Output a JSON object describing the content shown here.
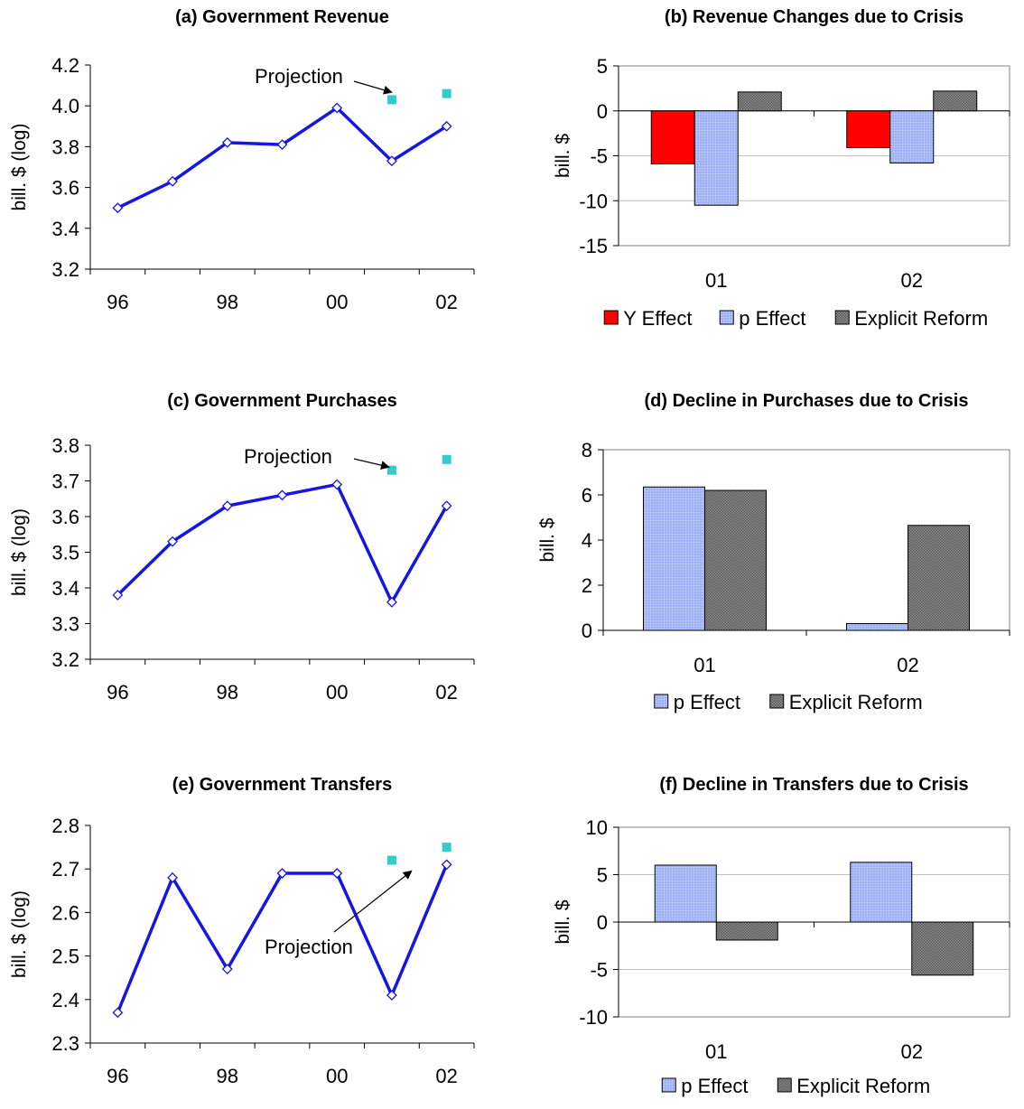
{
  "colors": {
    "line": "#1515e6",
    "projection": "#33cccc",
    "y_effect": "#ff0000",
    "p_effect": "#a6b8f5",
    "explicit_reform": "#8c8c8c",
    "axis": "#000000",
    "grid": "#c0c0c0"
  },
  "chart_data": [
    {
      "panel": "a",
      "type": "line",
      "title": "(a) Government Revenue",
      "ylabel": "bill. $ (log)",
      "xlabel": "",
      "x_ticks": [
        "96",
        "98",
        "00",
        "02"
      ],
      "x": [
        "96",
        "97",
        "98",
        "99",
        "00",
        "01",
        "02"
      ],
      "ylim": [
        3.2,
        4.2
      ],
      "y_ticks": [
        "3.2",
        "3.4",
        "3.6",
        "3.8",
        "4.0",
        "4.2"
      ],
      "grid": false,
      "series": [
        {
          "values": [
            3.5,
            3.63,
            3.82,
            3.81,
            3.99,
            3.73,
            3.9
          ]
        }
      ],
      "projection": {
        "x": [
          "01",
          "02"
        ],
        "values": [
          4.03,
          4.06
        ]
      },
      "annotation": "Projection"
    },
    {
      "panel": "b",
      "type": "bar",
      "title": "(b) Revenue Changes due to Crisis",
      "ylabel": "bill. $",
      "xlabel": "",
      "categories": [
        "01",
        "02"
      ],
      "ylim": [
        -15,
        5
      ],
      "y_ticks": [
        "5",
        "0",
        "-5",
        "-10",
        "-15"
      ],
      "grid": true,
      "legend_position": "bottom",
      "series": [
        {
          "name": "Y Effect",
          "values": [
            -5.9,
            -4.1
          ]
        },
        {
          "name": "p Effect",
          "values": [
            -10.5,
            -5.8
          ]
        },
        {
          "name": "Explicit Reform",
          "values": [
            2.1,
            2.2
          ]
        }
      ]
    },
    {
      "panel": "c",
      "type": "line",
      "title": "(c) Government Purchases",
      "ylabel": "bill. $ (log)",
      "xlabel": "",
      "x_ticks": [
        "96",
        "98",
        "00",
        "02"
      ],
      "x": [
        "96",
        "97",
        "98",
        "99",
        "00",
        "01",
        "02"
      ],
      "ylim": [
        3.2,
        3.8
      ],
      "y_ticks": [
        "3.2",
        "3.3",
        "3.4",
        "3.5",
        "3.6",
        "3.7",
        "3.8"
      ],
      "grid": false,
      "series": [
        {
          "values": [
            3.38,
            3.53,
            3.63,
            3.66,
            3.69,
            3.36,
            3.63
          ]
        }
      ],
      "projection": {
        "x": [
          "01",
          "02"
        ],
        "values": [
          3.73,
          3.76
        ]
      },
      "annotation": "Projection"
    },
    {
      "panel": "d",
      "type": "bar",
      "title": "(d) Decline in Purchases due to Crisis",
      "ylabel": "bill. $",
      "xlabel": "",
      "categories": [
        "01",
        "02"
      ],
      "ylim": [
        0,
        8
      ],
      "y_ticks": [
        "8",
        "6",
        "4",
        "2",
        "0"
      ],
      "grid": false,
      "legend_position": "bottom",
      "series": [
        {
          "name": "p Effect",
          "values": [
            6.35,
            0.3
          ]
        },
        {
          "name": "Explicit Reform",
          "values": [
            6.2,
            4.65
          ]
        }
      ]
    },
    {
      "panel": "e",
      "type": "line",
      "title": "(e) Government Transfers",
      "ylabel": "bill. $ (log)",
      "xlabel": "",
      "x_ticks": [
        "96",
        "98",
        "00",
        "02"
      ],
      "x": [
        "96",
        "97",
        "98",
        "99",
        "00",
        "01",
        "02"
      ],
      "ylim": [
        2.3,
        2.8
      ],
      "y_ticks": [
        "2.3",
        "2.4",
        "2.5",
        "2.6",
        "2.7",
        "2.8"
      ],
      "grid": false,
      "series": [
        {
          "values": [
            2.37,
            2.68,
            2.47,
            2.69,
            2.69,
            2.41,
            2.71
          ]
        }
      ],
      "projection": {
        "x": [
          "01",
          "02"
        ],
        "values": [
          2.72,
          2.75
        ]
      },
      "annotation": "Projection"
    },
    {
      "panel": "f",
      "type": "bar",
      "title": "(f) Decline in Transfers due to Crisis",
      "ylabel": "bill. $",
      "xlabel": "",
      "categories": [
        "01",
        "02"
      ],
      "ylim": [
        -10,
        10
      ],
      "y_ticks": [
        "10",
        "5",
        "0",
        "-5",
        "-10"
      ],
      "grid": true,
      "legend_position": "bottom",
      "series": [
        {
          "name": "p Effect",
          "values": [
            6.0,
            6.3
          ]
        },
        {
          "name": "Explicit Reform",
          "values": [
            -1.9,
            -5.6
          ]
        }
      ]
    }
  ]
}
